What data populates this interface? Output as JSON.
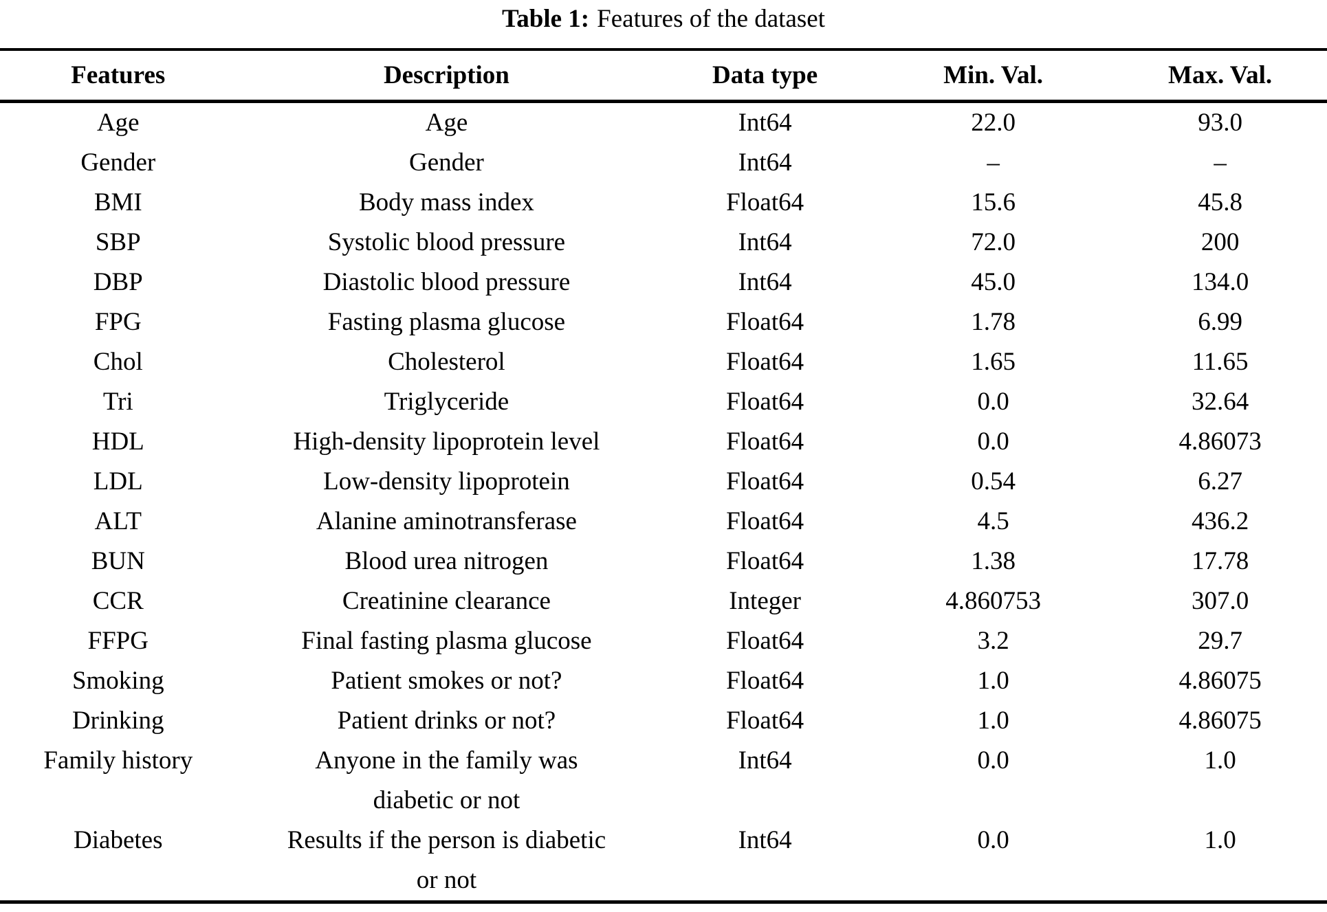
{
  "caption": {
    "label": "Table 1:",
    "text": "Features of the dataset"
  },
  "colors": {
    "text": "#000000",
    "background": "#ffffff",
    "rule": "#000000"
  },
  "table": {
    "columns": [
      "Features",
      "Description",
      "Data type",
      "Min. Val.",
      "Max. Val."
    ],
    "rows": [
      {
        "feature": "Age",
        "description": "Age",
        "data_type": "Int64",
        "min": "22.0",
        "max": "93.0"
      },
      {
        "feature": "Gender",
        "description": "Gender",
        "data_type": "Int64",
        "min": "–",
        "max": "–"
      },
      {
        "feature": "BMI",
        "description": "Body mass index",
        "data_type": "Float64",
        "min": "15.6",
        "max": "45.8"
      },
      {
        "feature": "SBP",
        "description": "Systolic blood pressure",
        "data_type": "Int64",
        "min": "72.0",
        "max": "200"
      },
      {
        "feature": "DBP",
        "description": "Diastolic blood pressure",
        "data_type": "Int64",
        "min": "45.0",
        "max": "134.0"
      },
      {
        "feature": "FPG",
        "description": "Fasting plasma glucose",
        "data_type": "Float64",
        "min": "1.78",
        "max": "6.99"
      },
      {
        "feature": "Chol",
        "description": "Cholesterol",
        "data_type": "Float64",
        "min": "1.65",
        "max": "11.65"
      },
      {
        "feature": "Tri",
        "description": "Triglyceride",
        "data_type": "Float64",
        "min": "0.0",
        "max": "32.64"
      },
      {
        "feature": "HDL",
        "description": "High-density lipoprotein level",
        "data_type": "Float64",
        "min": "0.0",
        "max": "4.86073"
      },
      {
        "feature": "LDL",
        "description": "Low-density lipoprotein",
        "data_type": "Float64",
        "min": "0.54",
        "max": "6.27"
      },
      {
        "feature": "ALT",
        "description": "Alanine aminotransferase",
        "data_type": "Float64",
        "min": "4.5",
        "max": "436.2"
      },
      {
        "feature": "BUN",
        "description": "Blood urea nitrogen",
        "data_type": "Float64",
        "min": "1.38",
        "max": "17.78"
      },
      {
        "feature": "CCR",
        "description": "Creatinine clearance",
        "data_type": "Integer",
        "min": "4.860753",
        "max": "307.0"
      },
      {
        "feature": "FFPG",
        "description": "Final fasting plasma glucose",
        "data_type": "Float64",
        "min": "3.2",
        "max": "29.7"
      },
      {
        "feature": "Smoking",
        "description": "Patient smokes or not?",
        "data_type": "Float64",
        "min": "1.0",
        "max": "4.86075"
      },
      {
        "feature": "Drinking",
        "description": "Patient drinks or not?",
        "data_type": "Float64",
        "min": "1.0",
        "max": "4.86075"
      },
      {
        "feature": "Family history",
        "description": "Anyone in the family was\ndiabetic or not",
        "data_type": "Int64",
        "min": "0.0",
        "max": "1.0"
      },
      {
        "feature": "Diabetes",
        "description": "Results if the person is diabetic\nor not",
        "data_type": "Int64",
        "min": "0.0",
        "max": "1.0"
      }
    ]
  }
}
